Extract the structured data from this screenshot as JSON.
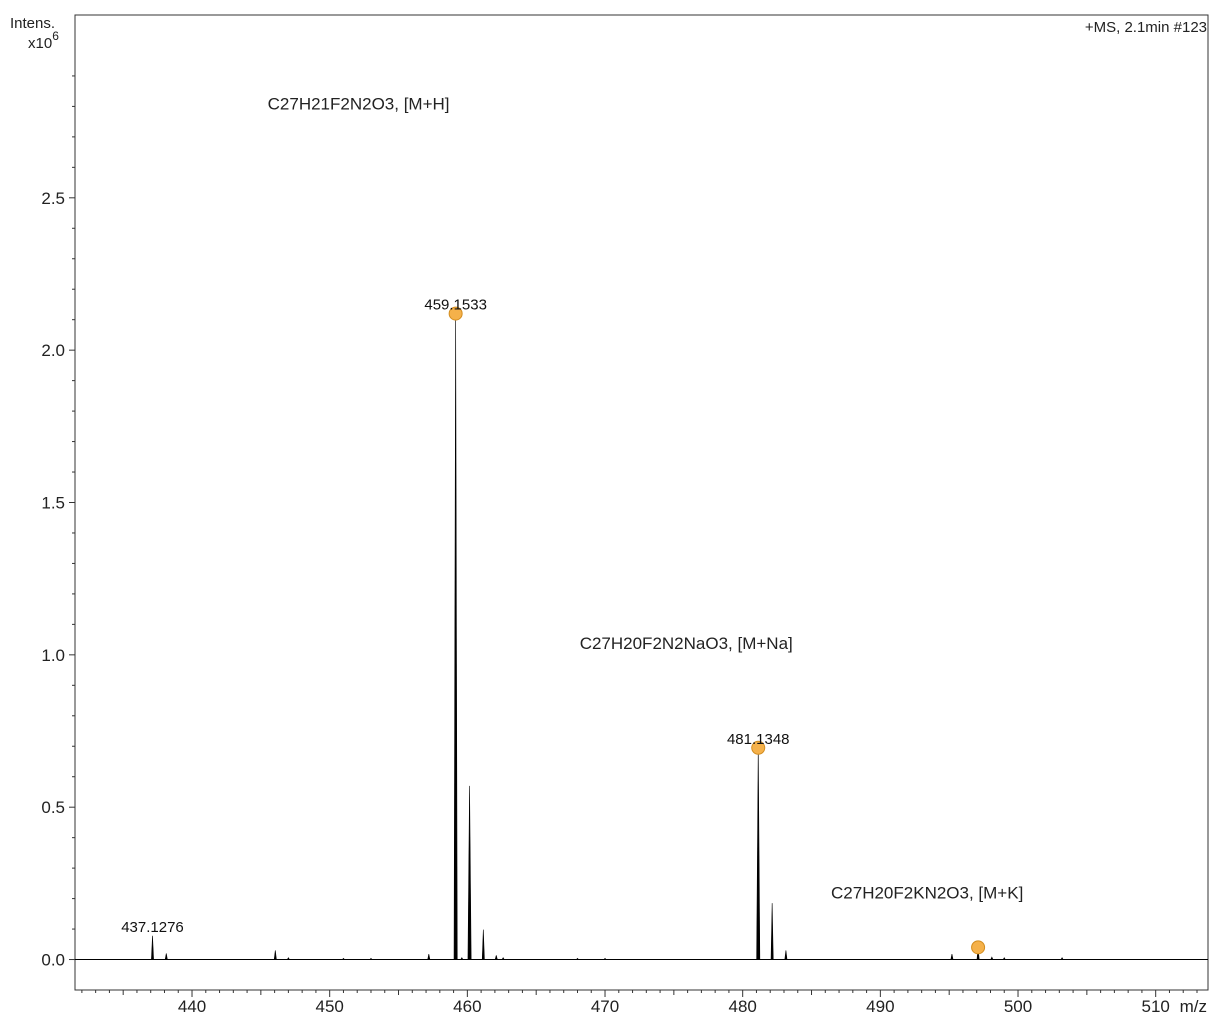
{
  "chart_data": {
    "type": "line",
    "ylabel": "Intens.",
    "ylabel_scale": "x10",
    "ylabel_exponent": "6",
    "xlabel": "m/z",
    "spectrum_info": "+MS, 2.1min #123",
    "xlim": [
      431.5,
      513.8
    ],
    "ylim": [
      -0.1,
      3.1
    ],
    "x_ticks": [
      440,
      450,
      460,
      470,
      480,
      490,
      500,
      510
    ],
    "x_tick_labels": [
      "440",
      "450",
      "460",
      "470",
      "480",
      "490",
      "500",
      "510"
    ],
    "y_ticks": [
      0.0,
      0.5,
      1.0,
      1.5,
      2.0,
      2.5
    ],
    "y_tick_labels": [
      "0.0",
      "0.5",
      "1.0",
      "1.5",
      "2.0",
      "2.5"
    ],
    "peaks": [
      {
        "x": 437.13,
        "y": 0.078
      },
      {
        "x": 438.13,
        "y": 0.02
      },
      {
        "x": 446.05,
        "y": 0.03
      },
      {
        "x": 447.0,
        "y": 0.006
      },
      {
        "x": 451.0,
        "y": 0.004
      },
      {
        "x": 453.0,
        "y": 0.004
      },
      {
        "x": 457.2,
        "y": 0.018
      },
      {
        "x": 459.15,
        "y": 2.12
      },
      {
        "x": 459.6,
        "y": 0.006
      },
      {
        "x": 460.16,
        "y": 0.57
      },
      {
        "x": 461.16,
        "y": 0.098
      },
      {
        "x": 462.1,
        "y": 0.014
      },
      {
        "x": 462.6,
        "y": 0.006
      },
      {
        "x": 468.0,
        "y": 0.004
      },
      {
        "x": 470.0,
        "y": 0.004
      },
      {
        "x": 481.13,
        "y": 0.695
      },
      {
        "x": 482.14,
        "y": 0.185
      },
      {
        "x": 483.14,
        "y": 0.03
      },
      {
        "x": 495.2,
        "y": 0.018
      },
      {
        "x": 497.1,
        "y": 0.04
      },
      {
        "x": 498.1,
        "y": 0.008
      },
      {
        "x": 499.0,
        "y": 0.006
      },
      {
        "x": 503.2,
        "y": 0.006
      }
    ],
    "peak_labels": [
      {
        "x": 437.13,
        "y": 0.078,
        "text": "437.1276"
      },
      {
        "x": 459.15,
        "y": 2.12,
        "text": "459.1533"
      },
      {
        "x": 481.13,
        "y": 0.695,
        "text": "481.1348"
      }
    ],
    "markers": [
      {
        "x": 459.15,
        "y": 2.12
      },
      {
        "x": 481.13,
        "y": 0.695
      },
      {
        "x": 497.1,
        "y": 0.04
      }
    ],
    "annotations": [
      {
        "text": "C27H21F2N2O3, [M+H]",
        "x": 452.1,
        "y": 2.79
      },
      {
        "text": "C27H20F2N2NaO3, [M+Na]",
        "x": 475.9,
        "y": 1.02
      },
      {
        "text": "C27H20F2KN2O3, [M+K]",
        "x": 493.4,
        "y": 0.2
      }
    ],
    "colors": {
      "trace": "#000000",
      "marker_fill": "#f5b14a",
      "marker_stroke": "#d38d1f",
      "axis": "#333333"
    }
  }
}
